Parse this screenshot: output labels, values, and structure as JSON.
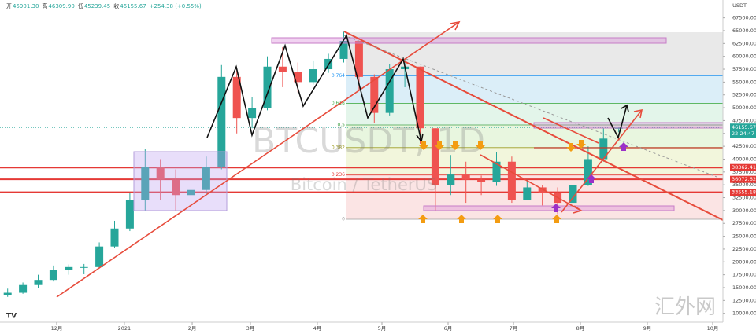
{
  "chart_data": {
    "type": "candlestick",
    "header": {
      "ohlc": [
        {
          "label": "开",
          "value": "45901.30"
        },
        {
          "label": "高",
          "value": "46309.90"
        },
        {
          "label": "低",
          "value": "45239.45"
        },
        {
          "label": "收",
          "value": "46155.67"
        }
      ],
      "change": "+254.38 (+0.55%)"
    },
    "watermark": "BTCUSDT, 1D",
    "watermark_sub": "Bitcoin / TetherUS",
    "currency": "USDT",
    "brand": "汇外网",
    "time_left": "22:24:47",
    "categories": [
      null,
      null,
      null,
      null,
      null,
      null,
      null,
      null,
      null,
      null,
      null,
      null,
      null,
      null,
      null,
      null,
      null,
      null,
      null,
      null,
      null,
      null,
      null,
      null,
      null,
      null,
      null,
      null,
      null,
      null,
      null,
      null,
      null,
      null,
      null,
      null,
      null,
      null,
      null,
      null,
      null
    ],
    "open": [
      13500,
      14000,
      15500,
      16500,
      18500,
      19000,
      19000,
      23000,
      26500,
      32000,
      38500,
      36000,
      33000,
      34000,
      38500,
      56000,
      48000,
      50000,
      58000,
      57000,
      55000,
      57500,
      59500,
      63000,
      56000,
      49000,
      57500,
      58000,
      46000,
      35000,
      37000,
      36000,
      35500,
      39500,
      32000,
      34500,
      33500,
      31500,
      35000,
      40000,
      45901.3
    ],
    "high": [
      14800,
      16000,
      17500,
      19300,
      19500,
      19600,
      23800,
      28000,
      33500,
      41900,
      40000,
      38000,
      36500,
      40500,
      58300,
      57500,
      52000,
      60000,
      61800,
      58800,
      59200,
      60500,
      64800,
      63000,
      56500,
      58500,
      59500,
      58000,
      46000,
      40800,
      39500,
      36800,
      41300,
      40500,
      36000,
      35000,
      34500,
      40500,
      42500,
      46000,
      46309.9
    ],
    "low": [
      13200,
      13800,
      15000,
      16200,
      17500,
      17600,
      18800,
      22800,
      26000,
      30000,
      32000,
      30000,
      29600,
      33000,
      38000,
      45000,
      46000,
      49500,
      54000,
      53000,
      54500,
      56800,
      58800,
      53500,
      47000,
      48500,
      54000,
      43000,
      30000,
      33000,
      31500,
      33000,
      34800,
      31500,
      32500,
      31000,
      29300,
      31000,
      34800,
      39500,
      45239.45
    ],
    "close": [
      14000,
      15500,
      16500,
      18500,
      19000,
      19000,
      23000,
      26500,
      32000,
      38500,
      36000,
      33000,
      34000,
      38500,
      56000,
      48000,
      50000,
      58000,
      57000,
      55000,
      57500,
      59500,
      63000,
      56000,
      49000,
      57500,
      58000,
      46000,
      35000,
      37000,
      36000,
      35500,
      39500,
      32000,
      34500,
      33500,
      31500,
      35000,
      40000,
      44000,
      46155.67
    ],
    "up_color": "#26a69a",
    "down_color": "#ef5350",
    "xlim": [
      -0.5,
      46.82
    ],
    "xticks": [
      {
        "value": 3.21,
        "label": "12月"
      },
      {
        "value": 7.64,
        "label": "2021"
      },
      {
        "value": 12.08,
        "label": "2月"
      },
      {
        "value": 15.89,
        "label": "3月"
      },
      {
        "value": 20.27,
        "label": "4月"
      },
      {
        "value": 24.5,
        "label": "5月"
      },
      {
        "value": 28.83,
        "label": "6月"
      },
      {
        "value": 33.11,
        "label": "7月"
      },
      {
        "value": 37.49,
        "label": "8月"
      },
      {
        "value": 41.87,
        "label": "9月"
      },
      {
        "value": 46.15,
        "label": "10月"
      }
    ],
    "ylim": [
      8270,
      70960
    ],
    "yticks": [
      {
        "value": 10000,
        "label": "10000.00"
      },
      {
        "value": 12500,
        "label": "12500.00"
      },
      {
        "value": 15000,
        "label": "15000.00"
      },
      {
        "value": 17500,
        "label": "17500.00"
      },
      {
        "value": 20000,
        "label": "20000.00"
      },
      {
        "value": 22500,
        "label": "22500.00"
      },
      {
        "value": 25000,
        "label": "25000.00"
      },
      {
        "value": 27500,
        "label": "27500.00"
      },
      {
        "value": 30000,
        "label": "30000.00"
      },
      {
        "value": 32500,
        "label": "32500.00"
      },
      {
        "value": 35000,
        "label": "35000.00"
      },
      {
        "value": 37500,
        "label": "37500.00"
      },
      {
        "value": 40000,
        "label": "40000.00"
      },
      {
        "value": 42500,
        "label": "42500.00"
      },
      {
        "value": 45000,
        "label": "45000.00"
      },
      {
        "value": 47500,
        "label": "47500.00"
      },
      {
        "value": 50000,
        "label": "50000.00"
      },
      {
        "value": 52500,
        "label": "52500.00"
      },
      {
        "value": 55000,
        "label": "55000.00"
      },
      {
        "value": 57500,
        "label": "57500.00"
      },
      {
        "value": 60000,
        "label": "60000.00"
      },
      {
        "value": 62500,
        "label": "62500.00"
      },
      {
        "value": 65000,
        "label": "65000.00"
      },
      {
        "value": 67500,
        "label": "67500.00"
      }
    ],
    "fib_levels": [
      {
        "value": 56190,
        "label": "0.764",
        "color": "#dbeef8",
        "line": "#2196f3"
      },
      {
        "value": 50860,
        "label": "0.618",
        "color": "#e3f5ea",
        "line": "#4caf50"
      },
      {
        "value": 46650,
        "label": "0.5",
        "color": "#e8f6df",
        "line": "#43a047"
      },
      {
        "value": 42240,
        "label": "0.382",
        "color": "#f2f6dc",
        "line": "#9e9d24"
      },
      {
        "value": 36910,
        "label": "0.236",
        "color": "#fbe4e4",
        "line": "#e53935"
      },
      {
        "value": 28300,
        "label": "0",
        "color": "#fbe4e4",
        "line": "#9e9e9e"
      }
    ],
    "price_label": 46155.67,
    "price_color": "#26a69a",
    "support_levels": [
      38362.41,
      36072.62,
      33555.18
    ],
    "support_color": "#e53935"
  }
}
